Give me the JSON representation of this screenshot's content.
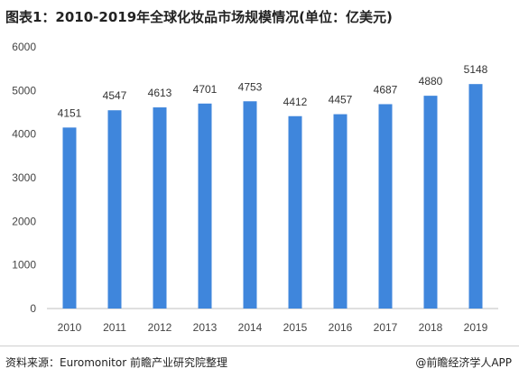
{
  "title": "图表1：2010-2019年全球化妆品市场规模情况(单位：亿美元)",
  "source": "资料来源：Euromonitor 前瞻产业研究院整理",
  "credit": "@前瞻经济学人APP",
  "chart_data": {
    "type": "bar",
    "categories": [
      "2010",
      "2011",
      "2012",
      "2013",
      "2014",
      "2015",
      "2016",
      "2017",
      "2018",
      "2019"
    ],
    "values": [
      4151,
      4547,
      4613,
      4701,
      4753,
      4412,
      4457,
      4687,
      4880,
      5148
    ],
    "ylim": [
      0,
      6000
    ],
    "yticks": [
      0,
      1000,
      2000,
      3000,
      4000,
      5000,
      6000
    ],
    "bar_color": "#3f86dc",
    "grid": false,
    "data_labels": true
  }
}
